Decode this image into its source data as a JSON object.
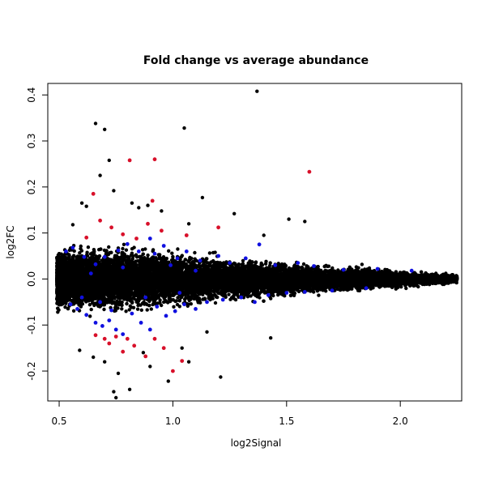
{
  "chart_data": {
    "type": "scatter",
    "title": "Fold change vs average abundance",
    "xlabel": "log2Signal",
    "ylabel": "log2FC",
    "xlim": [
      0.45,
      2.27
    ],
    "ylim": [
      -0.265,
      0.425
    ],
    "x_ticks": [
      0.5,
      1.0,
      1.5,
      2.0
    ],
    "x_tick_labels": [
      "0.5",
      "1.0",
      "1.5",
      "2.0"
    ],
    "y_ticks": [
      -0.2,
      -0.1,
      0.0,
      0.1,
      0.2,
      0.3,
      0.4
    ],
    "y_tick_labels": [
      "-0.2",
      "-0.1",
      "0.0",
      "0.1",
      "0.2",
      "0.3",
      "0.4"
    ],
    "grid": false,
    "legend": "none",
    "colors": {
      "black": "#000000",
      "blue": "#1010e0",
      "red": "#d8102a"
    },
    "series": [
      {
        "color": "#000000",
        "cloud": {
          "x_range": [
            0.49,
            2.25
          ],
          "spread_at_x": [
            [
              0.5,
              0.07
            ],
            [
              0.8,
              0.075
            ],
            [
              1.2,
              0.05
            ],
            [
              1.6,
              0.035
            ],
            [
              2.0,
              0.02
            ],
            [
              2.25,
              0.01
            ]
          ],
          "approx_count": 12000
        },
        "points": [
          [
            1.37,
            0.408
          ],
          [
            0.66,
            0.338
          ],
          [
            0.7,
            0.325
          ],
          [
            1.05,
            0.328
          ],
          [
            0.72,
            0.258
          ],
          [
            0.6,
            0.165
          ],
          [
            0.74,
            0.192
          ],
          [
            0.62,
            0.158
          ],
          [
            0.82,
            0.165
          ],
          [
            0.89,
            0.16
          ],
          [
            1.13,
            0.177
          ],
          [
            0.95,
            0.148
          ],
          [
            1.27,
            0.142
          ],
          [
            1.51,
            0.13
          ],
          [
            1.58,
            0.125
          ],
          [
            0.56,
            0.118
          ],
          [
            1.07,
            0.12
          ],
          [
            0.85,
            0.155
          ],
          [
            1.4,
            0.095
          ],
          [
            0.68,
            0.225
          ],
          [
            0.76,
            -0.205
          ],
          [
            0.74,
            -0.245
          ],
          [
            0.75,
            -0.258
          ],
          [
            0.81,
            -0.24
          ],
          [
            0.98,
            -0.222
          ],
          [
            1.21,
            -0.213
          ],
          [
            1.07,
            -0.18
          ],
          [
            0.7,
            -0.18
          ],
          [
            1.43,
            -0.128
          ],
          [
            1.04,
            -0.15
          ],
          [
            0.59,
            -0.155
          ],
          [
            0.9,
            -0.19
          ],
          [
            1.15,
            -0.115
          ],
          [
            0.65,
            -0.17
          ],
          [
            0.87,
            -0.16
          ]
        ]
      },
      {
        "color": "#1010e0",
        "points": [
          [
            0.53,
            0.06
          ],
          [
            0.56,
            0.068
          ],
          [
            0.61,
            0.048
          ],
          [
            0.66,
            0.032
          ],
          [
            0.7,
            0.048
          ],
          [
            0.76,
            0.062
          ],
          [
            0.8,
            0.076
          ],
          [
            0.85,
            0.06
          ],
          [
            0.9,
            0.088
          ],
          [
            0.92,
            0.055
          ],
          [
            0.96,
            0.072
          ],
          [
            1.02,
            0.045
          ],
          [
            1.06,
            0.06
          ],
          [
            1.12,
            0.04
          ],
          [
            1.2,
            0.05
          ],
          [
            1.25,
            0.035
          ],
          [
            1.32,
            0.045
          ],
          [
            1.38,
            0.075
          ],
          [
            1.45,
            0.03
          ],
          [
            1.55,
            0.035
          ],
          [
            1.62,
            0.028
          ],
          [
            1.75,
            0.02
          ],
          [
            1.9,
            0.022
          ],
          [
            2.05,
            0.018
          ],
          [
            0.64,
            0.012
          ],
          [
            0.78,
            0.025
          ],
          [
            0.99,
            0.03
          ],
          [
            1.1,
            0.018
          ],
          [
            0.55,
            -0.055
          ],
          [
            0.58,
            -0.065
          ],
          [
            0.62,
            -0.078
          ],
          [
            0.66,
            -0.095
          ],
          [
            0.69,
            -0.102
          ],
          [
            0.72,
            -0.09
          ],
          [
            0.75,
            -0.11
          ],
          [
            0.78,
            -0.12
          ],
          [
            0.82,
            -0.075
          ],
          [
            0.86,
            -0.095
          ],
          [
            0.9,
            -0.11
          ],
          [
            0.93,
            -0.06
          ],
          [
            0.97,
            -0.08
          ],
          [
            1.01,
            -0.07
          ],
          [
            1.05,
            -0.055
          ],
          [
            1.1,
            -0.065
          ],
          [
            1.15,
            -0.05
          ],
          [
            1.22,
            -0.045
          ],
          [
            1.3,
            -0.04
          ],
          [
            1.36,
            -0.05
          ],
          [
            1.42,
            -0.035
          ],
          [
            1.5,
            -0.03
          ],
          [
            1.58,
            -0.028
          ],
          [
            1.7,
            -0.025
          ],
          [
            1.85,
            -0.02
          ],
          [
            0.6,
            -0.04
          ],
          [
            0.68,
            -0.05
          ],
          [
            0.88,
            -0.04
          ],
          [
            1.03,
            -0.03
          ],
          [
            0.73,
            -0.068
          ]
        ]
      },
      {
        "color": "#d8102a",
        "points": [
          [
            0.81,
            0.258
          ],
          [
            0.92,
            0.26
          ],
          [
            1.6,
            0.233
          ],
          [
            0.65,
            0.185
          ],
          [
            0.91,
            0.17
          ],
          [
            0.68,
            0.127
          ],
          [
            0.73,
            0.112
          ],
          [
            0.89,
            0.12
          ],
          [
            0.95,
            0.105
          ],
          [
            1.2,
            0.112
          ],
          [
            0.78,
            0.097
          ],
          [
            0.84,
            0.088
          ],
          [
            1.06,
            0.095
          ],
          [
            0.62,
            0.09
          ],
          [
            0.66,
            -0.122
          ],
          [
            0.7,
            -0.13
          ],
          [
            0.75,
            -0.125
          ],
          [
            0.8,
            -0.13
          ],
          [
            0.83,
            -0.145
          ],
          [
            0.78,
            -0.158
          ],
          [
            0.92,
            -0.13
          ],
          [
            1.0,
            -0.2
          ],
          [
            1.04,
            -0.178
          ],
          [
            0.88,
            -0.168
          ],
          [
            0.72,
            -0.14
          ],
          [
            0.96,
            -0.15
          ]
        ]
      }
    ]
  }
}
